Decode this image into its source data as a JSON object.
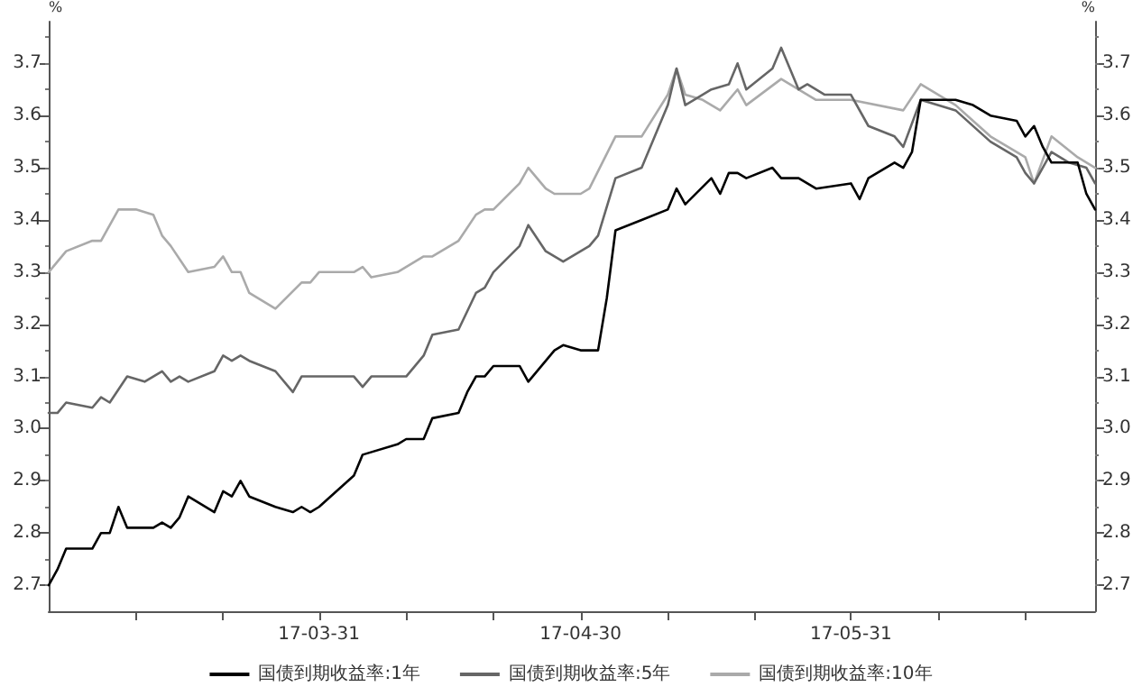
{
  "chart_data": {
    "type": "line",
    "ylabel": "%",
    "y2label": "%",
    "grid": false,
    "legend": "bottom",
    "marker": "none",
    "line_style": "solid",
    "xlim": [
      "--02-28",
      "--06-28"
    ],
    "xticks": [
      {
        "value": "--03-10",
        "label": null
      },
      {
        "value": "--03-20",
        "label": null
      },
      {
        "value": "--03-31",
        "label": "17-03-31"
      },
      {
        "value": "--04-10",
        "label": null
      },
      {
        "value": "--04-20",
        "label": null
      },
      {
        "value": "--04-30",
        "label": "17-04-30"
      },
      {
        "value": "--05-10",
        "label": null
      },
      {
        "value": "--05-20",
        "label": null
      },
      {
        "value": "--05-31",
        "label": "17-05-31"
      },
      {
        "value": "--06-10",
        "label": null
      },
      {
        "value": "--06-20",
        "label": null
      }
    ],
    "ylim": [
      2.65,
      3.78
    ],
    "yticks": [
      2.7,
      2.8,
      2.9,
      {
        "value": 3,
        "label": "3.0"
      },
      3.1,
      3.2,
      3.3,
      3.4,
      3.5,
      3.6,
      3.7
    ],
    "y2lim": [
      2.65,
      3.78
    ],
    "y2ticks": [
      2.7,
      2.8,
      2.9,
      {
        "value": 3,
        "label": "3.0"
      },
      3.1,
      3.2,
      3.3,
      3.4,
      3.5,
      3.6,
      3.7
    ],
    "series": [
      {
        "name": "国债到期收益率:1年",
        "color": "#000000",
        "x": [
          "--02-28",
          "--03-01",
          "--03-02",
          "--03-05",
          "--03-06",
          "--03-07",
          "--03-08",
          "--03-09",
          "--03-12",
          "--03-13",
          "--03-14",
          "--03-15",
          "--03-16",
          "--03-19",
          "--03-20",
          "--03-21",
          "--03-22",
          "--03-23",
          "--03-26",
          "--03-28",
          "--03-29",
          "--03-30",
          "--03-31",
          "--04-04",
          "--04-05",
          "--04-09",
          "--04-10",
          "--04-12",
          "--04-13",
          "--04-16",
          "--04-17",
          "--04-18",
          "--04-19",
          "--04-20",
          "--04-23",
          "--04-24",
          "--04-27",
          "--04-28",
          "--04-30",
          "--05-02",
          "--05-03",
          "--05-04",
          "--05-07",
          "--05-10",
          "--05-11",
          "--05-12",
          "--05-15",
          "--05-16",
          "--05-17",
          "--05-18",
          "--05-19",
          "--05-22",
          "--05-23",
          "--05-25",
          "--05-27",
          "--05-31",
          "--06-01",
          "--06-02",
          "--06-05",
          "--06-06",
          "--06-07",
          "--06-08",
          "--06-12",
          "--06-14",
          "--06-15",
          "--06-16",
          "--06-19",
          "--06-20",
          "--06-21",
          "--06-22",
          "--06-23",
          "--06-26",
          "--06-27",
          "--06-28"
        ],
        "values": [
          2.7,
          2.73,
          2.77,
          2.77,
          2.8,
          2.8,
          2.85,
          2.81,
          2.81,
          2.82,
          2.81,
          2.83,
          2.87,
          2.84,
          2.88,
          2.87,
          2.9,
          2.87,
          2.85,
          2.84,
          2.85,
          2.84,
          2.85,
          2.91,
          2.95,
          2.97,
          2.98,
          2.98,
          3.02,
          3.03,
          3.07,
          3.1,
          3.1,
          3.12,
          3.12,
          3.09,
          3.15,
          3.16,
          3.15,
          3.15,
          3.25,
          3.38,
          3.4,
          3.42,
          3.46,
          3.43,
          3.48,
          3.45,
          3.49,
          3.49,
          3.48,
          3.5,
          3.48,
          3.48,
          3.46,
          3.47,
          3.44,
          3.48,
          3.51,
          3.5,
          3.53,
          3.63,
          3.63,
          3.62,
          3.61,
          3.6,
          3.59,
          3.56,
          3.58,
          3.54,
          3.51,
          3.51,
          3.45,
          3.42
        ]
      },
      {
        "name": "国债到期收益率:5年",
        "color": "#666666",
        "x": [
          "--02-28",
          "--03-01",
          "--03-02",
          "--03-05",
          "--03-06",
          "--03-07",
          "--03-09",
          "--03-11",
          "--03-13",
          "--03-14",
          "--03-15",
          "--03-16",
          "--03-19",
          "--03-20",
          "--03-21",
          "--03-22",
          "--03-23",
          "--03-26",
          "--03-28",
          "--03-29",
          "--04-04",
          "--04-05",
          "--04-06",
          "--04-10",
          "--04-12",
          "--04-13",
          "--04-16",
          "--04-18",
          "--04-19",
          "--04-20",
          "--04-23",
          "--04-24",
          "--04-26",
          "--04-28",
          "--04-30",
          "--05-01",
          "--05-02",
          "--05-04",
          "--05-07",
          "--05-10",
          "--05-11",
          "--05-12",
          "--05-15",
          "--05-17",
          "--05-18",
          "--05-19",
          "--05-22",
          "--05-23",
          "--05-25",
          "--05-26",
          "--05-28",
          "--05-31",
          "--06-02",
          "--06-05",
          "--06-06",
          "--06-08",
          "--06-12",
          "--06-16",
          "--06-19",
          "--06-20",
          "--06-21",
          "--06-23",
          "--06-25",
          "--06-27",
          "--06-28"
        ],
        "values": [
          3.03,
          3.03,
          3.05,
          3.04,
          3.06,
          3.05,
          3.1,
          3.09,
          3.11,
          3.09,
          3.1,
          3.09,
          3.11,
          3.14,
          3.13,
          3.14,
          3.13,
          3.11,
          3.07,
          3.1,
          3.1,
          3.08,
          3.1,
          3.1,
          3.14,
          3.18,
          3.19,
          3.26,
          3.27,
          3.3,
          3.35,
          3.39,
          3.34,
          3.32,
          3.34,
          3.35,
          3.37,
          3.48,
          3.5,
          3.62,
          3.69,
          3.62,
          3.65,
          3.66,
          3.7,
          3.65,
          3.69,
          3.73,
          3.65,
          3.66,
          3.64,
          3.64,
          3.58,
          3.56,
          3.54,
          3.63,
          3.61,
          3.55,
          3.52,
          3.49,
          3.47,
          3.53,
          3.51,
          3.5,
          3.47
        ]
      },
      {
        "name": "国债到期收益率:10年",
        "color": "#aaaaaa",
        "x": [
          "--02-28",
          "--03-02",
          "--03-05",
          "--03-06",
          "--03-08",
          "--03-10",
          "--03-12",
          "--03-13",
          "--03-14",
          "--03-16",
          "--03-19",
          "--03-20",
          "--03-21",
          "--03-22",
          "--03-23",
          "--03-26",
          "--03-29",
          "--03-30",
          "--03-31",
          "--04-04",
          "--04-05",
          "--04-06",
          "--04-09",
          "--04-12",
          "--04-13",
          "--04-16",
          "--04-18",
          "--04-19",
          "--04-20",
          "--04-23",
          "--04-24",
          "--04-26",
          "--04-27",
          "--04-30",
          "--05-01",
          "--05-04",
          "--05-07",
          "--05-10",
          "--05-11",
          "--05-12",
          "--05-14",
          "--05-16",
          "--05-18",
          "--05-19",
          "--05-23",
          "--05-27",
          "--05-31",
          "--06-06",
          "--06-08",
          "--06-12",
          "--06-14",
          "--06-16",
          "--06-18",
          "--06-20",
          "--06-21",
          "--06-23",
          "--06-26",
          "--06-28"
        ],
        "values": [
          3.3,
          3.34,
          3.36,
          3.36,
          3.42,
          3.42,
          3.41,
          3.37,
          3.35,
          3.3,
          3.31,
          3.33,
          3.3,
          3.3,
          3.26,
          3.23,
          3.28,
          3.28,
          3.3,
          3.3,
          3.31,
          3.29,
          3.3,
          3.33,
          3.33,
          3.36,
          3.41,
          3.42,
          3.42,
          3.47,
          3.5,
          3.46,
          3.45,
          3.45,
          3.46,
          3.56,
          3.56,
          3.64,
          3.69,
          3.64,
          3.63,
          3.61,
          3.65,
          3.62,
          3.67,
          3.63,
          3.63,
          3.61,
          3.66,
          3.62,
          3.59,
          3.56,
          3.54,
          3.52,
          3.47,
          3.56,
          3.52,
          3.5
        ]
      }
    ]
  }
}
